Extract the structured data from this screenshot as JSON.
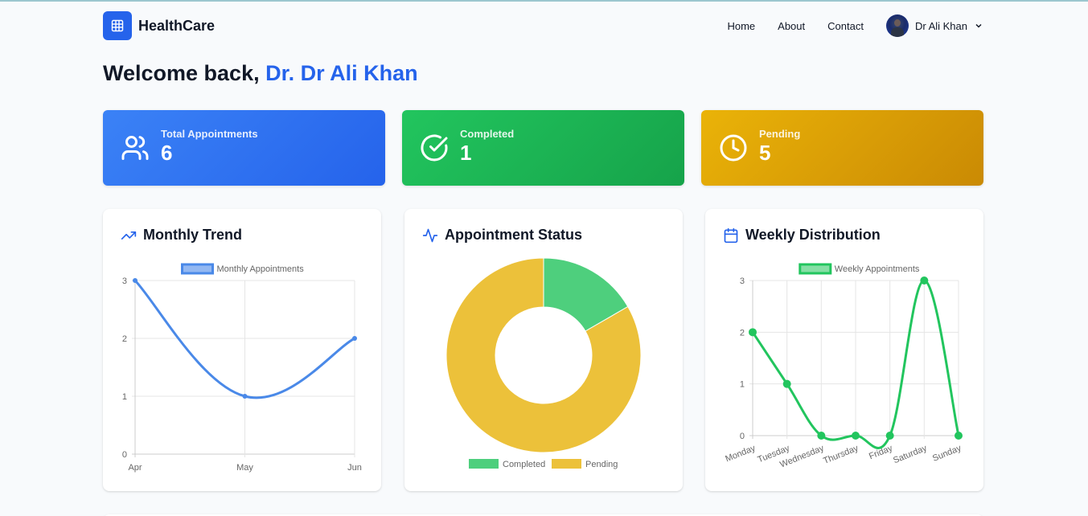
{
  "nav": {
    "brand": "HealthCare",
    "links": [
      "Home",
      "About",
      "Contact"
    ],
    "user_name": "Dr Ali Khan"
  },
  "welcome": {
    "prefix": "Welcome back,",
    "name": "Dr. Dr Ali Khan"
  },
  "stats": [
    {
      "label": "Total Appointments",
      "value": "6",
      "icon": "users-icon",
      "color": "#3b82f6"
    },
    {
      "label": "Completed",
      "value": "1",
      "icon": "check-circle-icon",
      "color": "#22c55e"
    },
    {
      "label": "Pending",
      "value": "5",
      "icon": "clock-icon",
      "color": "#eab308"
    }
  ],
  "cards": {
    "monthly": {
      "title": "Monthly Trend",
      "icon": "trending-up-icon"
    },
    "status": {
      "title": "Appointment Status",
      "icon": "activity-icon"
    },
    "weekly": {
      "title": "Weekly Distribution",
      "icon": "calendar-icon"
    }
  },
  "chart_data": [
    {
      "type": "line",
      "title": "Monthly Trend",
      "categories": [
        "Apr",
        "May",
        "Jun"
      ],
      "series": [
        {
          "name": "Monthly Appointments",
          "values": [
            3,
            1,
            2
          ],
          "color": "#4a89e8"
        }
      ],
      "ylim": [
        0,
        3
      ],
      "yticks": [
        "0",
        "1",
        "2",
        "3"
      ],
      "grid": true,
      "legend_position": "top"
    },
    {
      "type": "pie",
      "title": "Appointment Status",
      "categories": [
        "Completed",
        "Pending"
      ],
      "values": [
        1,
        5
      ],
      "colors": [
        "#4ecf7d",
        "#ecc13a"
      ],
      "donut": true,
      "legend_position": "bottom"
    },
    {
      "type": "line",
      "title": "Weekly Distribution",
      "categories": [
        "Monday",
        "Tuesday",
        "Wednesday",
        "Thursday",
        "Friday",
        "Saturday",
        "Sunday"
      ],
      "series": [
        {
          "name": "Weekly Appointments",
          "values": [
            2,
            1,
            0,
            0,
            0,
            3,
            0
          ],
          "color": "#22c55e"
        }
      ],
      "ylim": [
        0,
        3
      ],
      "yticks": [
        "0",
        "1",
        "2",
        "3"
      ],
      "grid": true,
      "legend_position": "top"
    }
  ]
}
